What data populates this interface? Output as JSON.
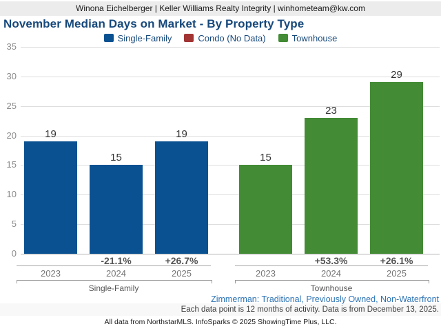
{
  "header": {
    "contact": "Winona Eichelberger | Keller Williams Realty Integrity | winhometeam@kw.com"
  },
  "title": "November Median Days on Market - By Property Type",
  "legend": {
    "items": [
      {
        "label": "Single-Family",
        "color": "#0a5191"
      },
      {
        "label": "Condo (No Data)",
        "color": "#a23434"
      },
      {
        "label": "Townhouse",
        "color": "#438b35"
      }
    ]
  },
  "chart_data": {
    "type": "bar",
    "title": "November Median Days on Market - By Property Type",
    "xlabel": "",
    "ylabel": "",
    "ylim": [
      0,
      35
    ],
    "ytick_interval": 5,
    "yticks": [
      0,
      5,
      10,
      15,
      20,
      25,
      30,
      35
    ],
    "grid": true,
    "legend_position": "top",
    "groups": [
      {
        "name": "Single-Family",
        "color": "#0a5191",
        "categories": [
          "2023",
          "2024",
          "2025"
        ],
        "values": [
          19,
          15,
          19
        ],
        "pct_change": [
          null,
          "-21.1%",
          "+26.7%"
        ]
      },
      {
        "name": "Townhouse",
        "color": "#438b35",
        "categories": [
          "2023",
          "2024",
          "2025"
        ],
        "values": [
          15,
          23,
          29
        ],
        "pct_change": [
          null,
          "+53.3%",
          "+26.1%"
        ]
      }
    ],
    "no_data_series": [
      "Condo"
    ]
  },
  "footer": {
    "filter_line": "Zimmerman: Traditional, Previously Owned, Non-Waterfront",
    "data_note": "Each data point is 12 months of activity. Data is from December 13, 2025.",
    "attribution": "All data from NorthstarMLS. InfoSparks © 2025 ShowingTime Plus, LLC."
  },
  "colors": {
    "title_text": "#17497c",
    "single_family_bar": "#0a5191",
    "condo_swatch": "#a23434",
    "townhouse_bar": "#438b35",
    "filter_line_text": "#2e74b5",
    "header_band_bg": "#ececec",
    "gridline": "#dedede"
  }
}
